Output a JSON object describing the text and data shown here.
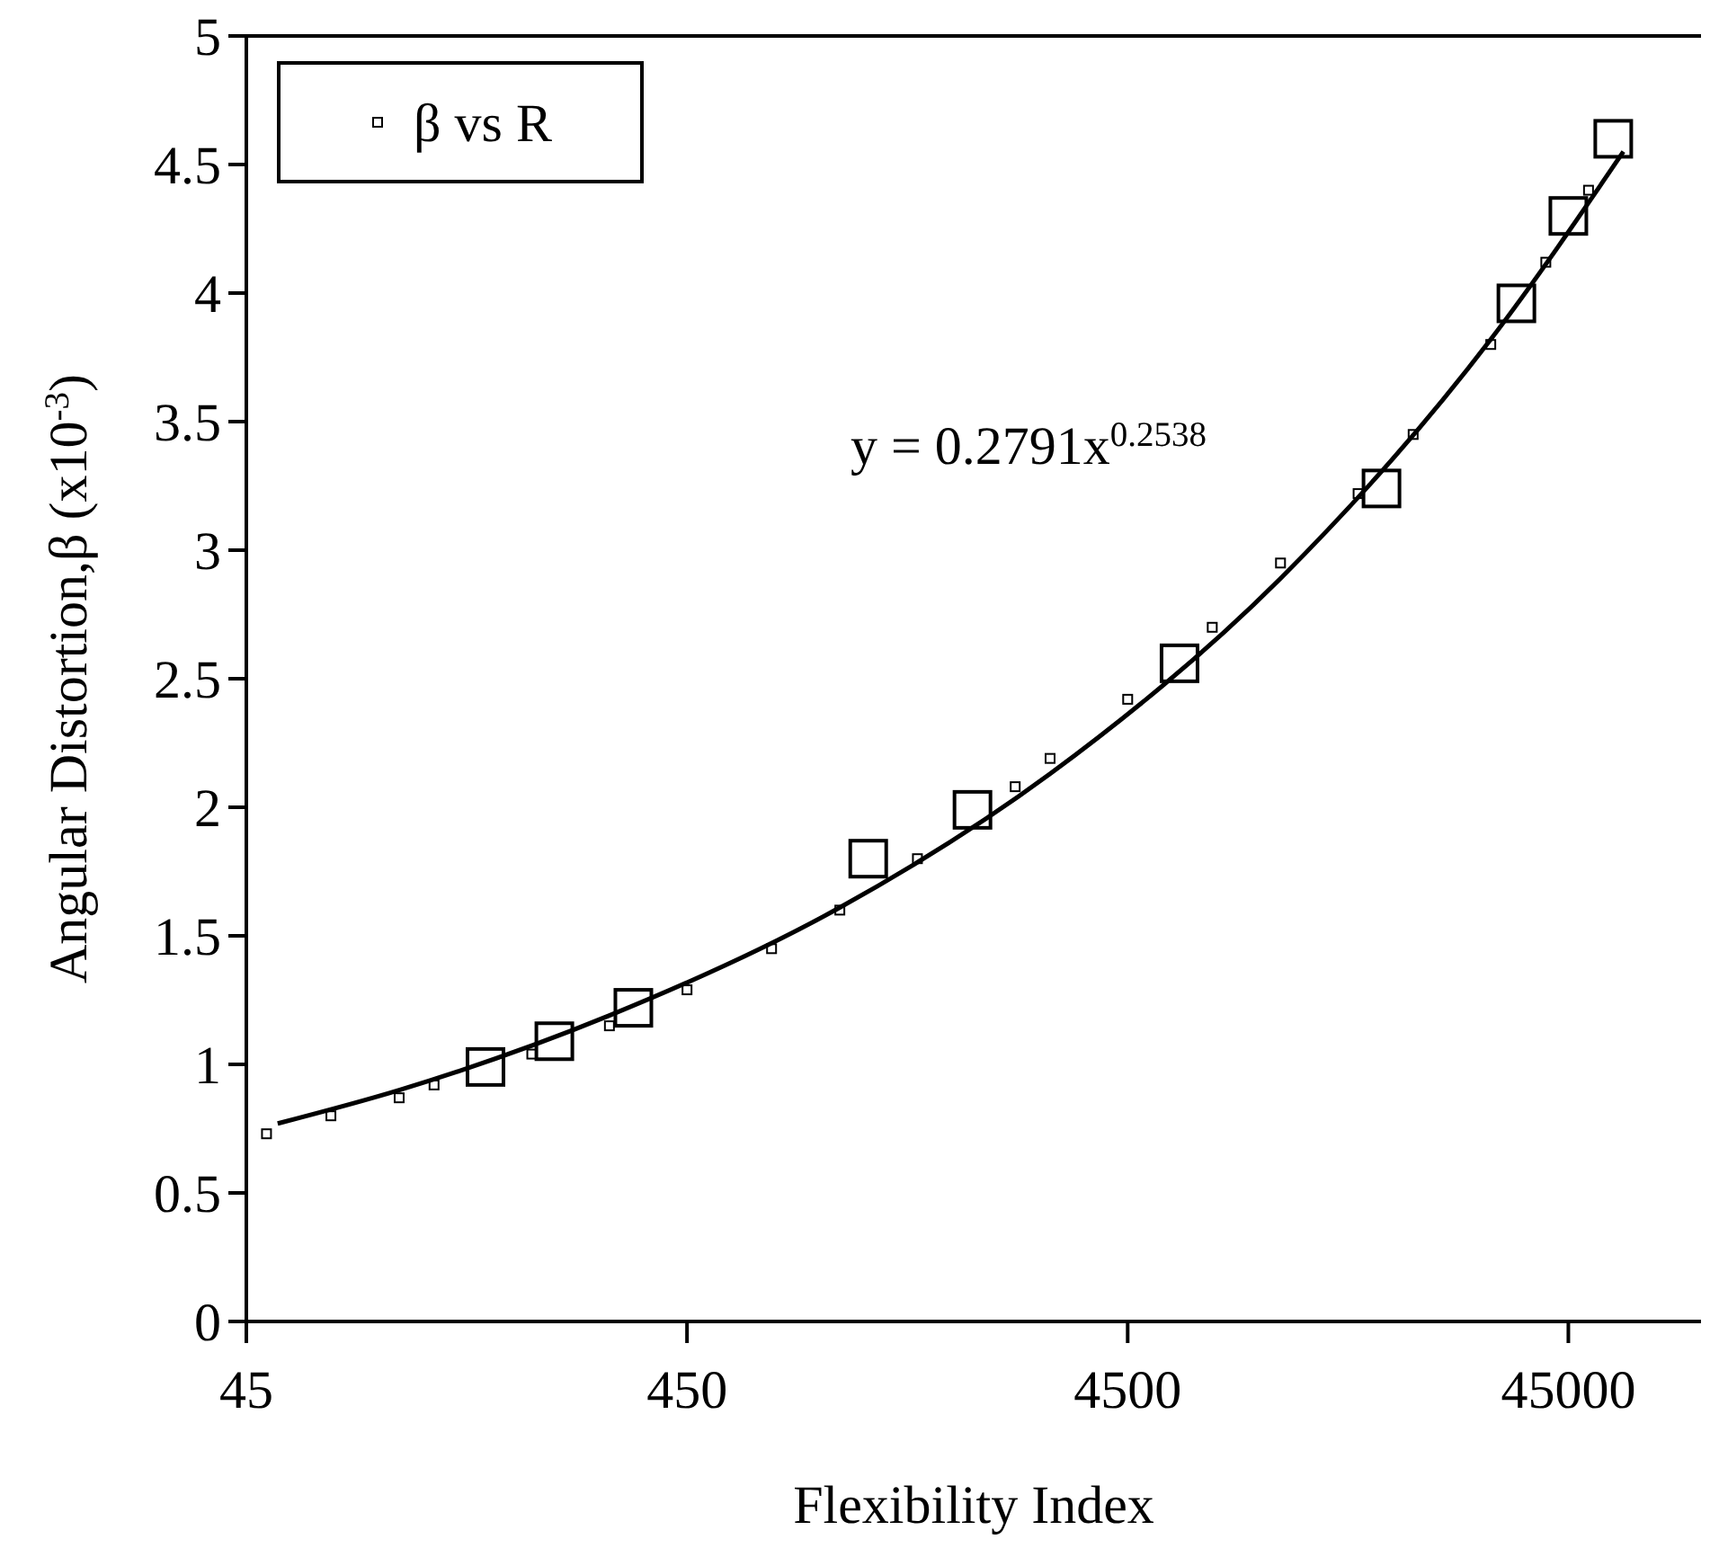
{
  "chart_data": {
    "type": "scatter",
    "xlabel": "Flexibility Index",
    "ylabel": "Angular Distortion,β (x10$^{-3}$)",
    "log": "x",
    "xlim": [
      45,
      90000
    ],
    "xticks": [
      45,
      450,
      4500,
      45000
    ],
    "ylim": [
      0,
      5
    ],
    "yticks": [
      0,
      0.5,
      1,
      1.5,
      2,
      2.5,
      3,
      3.5,
      4,
      4.5,
      5
    ],
    "legend": "top left",
    "annotations": [
      "y = 0.2791x$^{0.2538}$"
    ],
    "series": [
      {
        "name": "β vs R",
        "color": "#000000",
        "marker": "square",
        "x": [
          50,
          70,
          100,
          120,
          200,
          300,
          450,
          700,
          1000,
          1500,
          2500,
          3000,
          4500,
          7000,
          10000,
          15000,
          20000,
          30000,
          40000,
          50000
        ],
        "values": [
          0.73,
          0.8,
          0.87,
          0.92,
          1.04,
          1.15,
          1.29,
          1.45,
          1.6,
          1.8,
          2.08,
          2.19,
          2.42,
          2.7,
          2.95,
          3.22,
          3.45,
          3.8,
          4.12,
          4.4
        ]
      },
      {
        "color": "#000000",
        "marker": "square",
        "x": [
          157,
          225,
          340,
          1160,
          2000,
          5900,
          16950,
          34300,
          45000,
          56900
        ],
        "values": [
          0.99,
          1.09,
          1.22,
          1.8,
          1.99,
          2.56,
          3.24,
          3.96,
          4.3,
          4.6
        ]
      },
      {
        "type": "line",
        "color": "#000000",
        "line_style": "solid",
        "x": [
          53,
          100,
          300,
          1000,
          3000,
          10000,
          30000,
          60000
        ],
        "values": [
          0.77,
          0.9,
          1.19,
          1.61,
          2.13,
          2.89,
          3.82,
          4.55
        ]
      }
    ]
  }
}
